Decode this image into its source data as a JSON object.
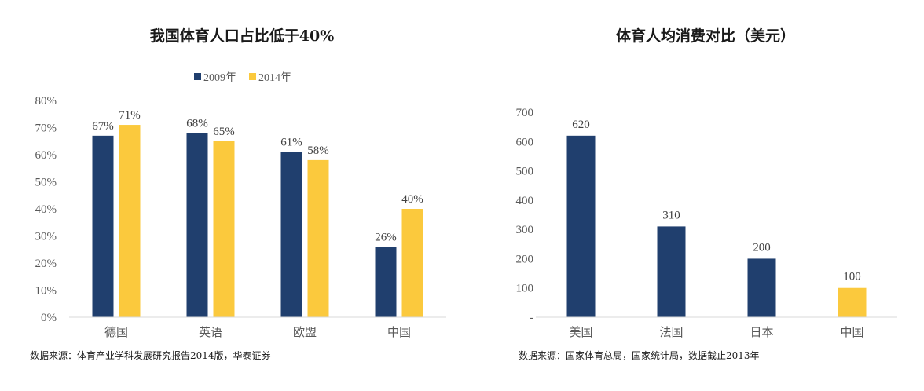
{
  "colors": {
    "navy": "#203f6e",
    "yellow": "#fbc93d",
    "axis": "#d9d9d9"
  },
  "chart_data": [
    {
      "type": "bar",
      "title": "我国体育人口占比低于40%",
      "categories": [
        "德国",
        "英语",
        "欧盟",
        "中国"
      ],
      "series": [
        {
          "name": "2009年",
          "color": "#203f6e",
          "values": [
            67,
            68,
            61,
            26
          ],
          "labels": [
            "67%",
            "68%",
            "61%",
            "26%"
          ]
        },
        {
          "name": "2014年",
          "color": "#fbc93d",
          "values": [
            71,
            65,
            58,
            40
          ],
          "labels": [
            "71%",
            "65%",
            "58%",
            "40%"
          ]
        }
      ],
      "ylim": [
        0,
        80
      ],
      "yticks": [
        "0%",
        "10%",
        "20%",
        "30%",
        "40%",
        "50%",
        "60%",
        "70%",
        "80%"
      ],
      "legend": "top",
      "grid": false,
      "source": "数据来源：体育产业学科发展研究报告2014版，华泰证券"
    },
    {
      "type": "bar",
      "title": "体育人均消费对比（美元）",
      "categories": [
        "美国",
        "法国",
        "日本",
        "中国"
      ],
      "values": [
        620,
        310,
        200,
        100
      ],
      "labels": [
        "620",
        "310",
        "200",
        "100"
      ],
      "bar_colors": [
        "#203f6e",
        "#203f6e",
        "#203f6e",
        "#fbc93d"
      ],
      "ylim": [
        0,
        700
      ],
      "yticks": [
        "-",
        "100",
        "200",
        "300",
        "400",
        "500",
        "600",
        "700"
      ],
      "grid": false,
      "source": "数据来源：国家体育总局，国家统计局，数据截止2013年"
    }
  ]
}
